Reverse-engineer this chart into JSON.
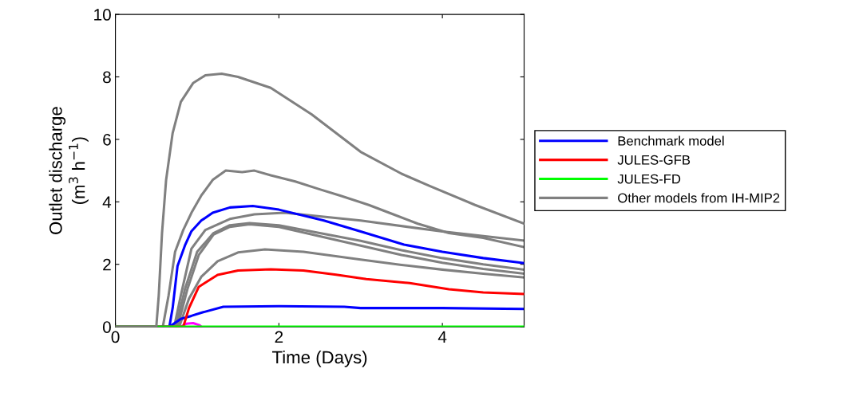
{
  "chart_data": {
    "type": "line",
    "xlabel": "Time (Days)",
    "ylabel": "Outlet discharge\n(m$^{3}$ h$^{−1}$)",
    "xlim": [
      0,
      5
    ],
    "ylim": [
      0,
      10
    ],
    "xticks": [
      0,
      2,
      4
    ],
    "yticks": [
      0,
      2,
      4,
      6,
      8,
      10
    ],
    "grid": false,
    "legend": "right",
    "marker": "none",
    "line_style": "solid",
    "series": [
      {
        "name": "Benchmark model",
        "color": "#0000ff",
        "x": [
          0,
          0.66,
          0.7,
          0.76,
          0.85,
          0.93,
          1.05,
          1.19,
          1.4,
          1.68,
          2.0,
          2.55,
          3.0,
          3.53,
          4.0,
          4.5,
          5
        ],
        "values": [
          0,
          0,
          0.6,
          1.95,
          2.6,
          3.06,
          3.4,
          3.65,
          3.82,
          3.87,
          3.75,
          3.4,
          3.05,
          2.63,
          2.4,
          2.2,
          2.04
        ]
      },
      {
        "name": "JULES-GFB",
        "color": "#ff0000",
        "x": [
          0,
          0.83,
          0.9,
          1.02,
          1.25,
          1.5,
          1.9,
          2.3,
          2.7,
          3.07,
          3.6,
          4.08,
          4.5,
          5
        ],
        "values": [
          0,
          0,
          0.6,
          1.28,
          1.66,
          1.8,
          1.84,
          1.8,
          1.67,
          1.53,
          1.4,
          1.2,
          1.1,
          1.05
        ]
      },
      {
        "name": "JULES-FD",
        "color": "#00ff00",
        "x": [
          0,
          5
        ],
        "values": [
          0,
          0
        ]
      },
      {
        "name": "Other models from IH-MIP2",
        "color": "#808080",
        "x": [
          0,
          0.5,
          0.53,
          0.57,
          0.62,
          0.7,
          0.8,
          0.95,
          1.1,
          1.3,
          1.5,
          1.9,
          2.4,
          3.0,
          3.5,
          3.85,
          4.4,
          5
        ],
        "values": [
          0,
          0,
          1,
          3,
          4.7,
          6.2,
          7.2,
          7.8,
          8.05,
          8.1,
          8.0,
          7.65,
          6.8,
          5.6,
          4.9,
          4.5,
          3.9,
          3.3
        ]
      },
      {
        "color": "#808080",
        "x": [
          0.58,
          0.65,
          0.73,
          0.83,
          0.93,
          1.05,
          1.19,
          1.35,
          1.55,
          1.7,
          1.9,
          2.2,
          2.5,
          2.75,
          3.1,
          3.4,
          3.7,
          4.08,
          4.5,
          5
        ],
        "values": [
          0,
          1,
          2.4,
          3.1,
          3.65,
          4.2,
          4.7,
          5.0,
          4.95,
          5.0,
          4.85,
          4.65,
          4.4,
          4.2,
          3.9,
          3.6,
          3.3,
          3.0,
          2.85,
          2.55
        ]
      },
      {
        "color": "#808080",
        "x": [
          0.72,
          0.8,
          0.93,
          1.1,
          1.4,
          1.7,
          2.07,
          3,
          4,
          5
        ],
        "values": [
          0,
          1.0,
          2.5,
          3.1,
          3.45,
          3.6,
          3.65,
          3.4,
          3.05,
          2.76
        ]
      },
      {
        "color": "#808080",
        "x": [
          0.74,
          0.85,
          1.0,
          1.2,
          1.4,
          1.64,
          2.0,
          2.5,
          3,
          3.5,
          4,
          4.5,
          5
        ],
        "values": [
          0,
          1.2,
          2.4,
          3.0,
          3.25,
          3.32,
          3.25,
          3.0,
          2.75,
          2.45,
          2.2,
          2.0,
          1.83
        ]
      },
      {
        "color": "#808080",
        "x": [
          0.76,
          0.88,
          1.02,
          1.2,
          1.4,
          1.64,
          2.0,
          2.5,
          3,
          3.5,
          4,
          4.5,
          5
        ],
        "values": [
          0,
          1.2,
          2.3,
          2.95,
          3.2,
          3.28,
          3.2,
          2.9,
          2.6,
          2.3,
          2.05,
          1.85,
          1.7
        ]
      },
      {
        "color": "#808080",
        "x": [
          0.78,
          0.9,
          1.05,
          1.25,
          1.5,
          1.83,
          2.3,
          3,
          3.5,
          4,
          4.5,
          5
        ],
        "values": [
          0,
          0.9,
          1.6,
          2.1,
          2.38,
          2.48,
          2.4,
          2.15,
          1.98,
          1.83,
          1.7,
          1.58
        ]
      },
      {
        "color": "#ff00ff",
        "x": [
          0.8,
          0.87,
          0.95,
          1.03,
          1.05
        ],
        "values": [
          0,
          0.1,
          0.12,
          0.05,
          0
        ]
      },
      {
        "color": "#0000ff",
        "x": [
          0.66,
          0.8,
          0.93,
          1.05,
          1.32,
          2.0,
          2.8,
          3.0,
          4.0,
          5
        ],
        "values": [
          0,
          0.25,
          0.35,
          0.45,
          0.64,
          0.66,
          0.64,
          0.6,
          0.6,
          0.57
        ]
      }
    ]
  }
}
